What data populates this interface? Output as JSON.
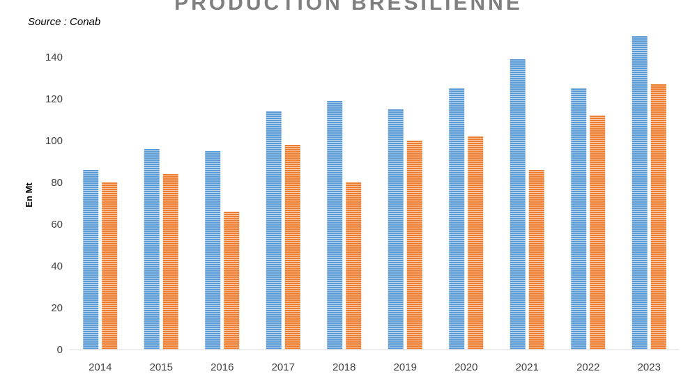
{
  "chart_data": {
    "type": "bar",
    "title": "PRODUCTION BRESILIENNE",
    "subtitle": "Source : Conab",
    "xlabel": "",
    "ylabel": "En Mt",
    "categories": [
      "2014",
      "2015",
      "2016",
      "2017",
      "2018",
      "2019",
      "2020",
      "2021",
      "2022",
      "2023"
    ],
    "series": [
      {
        "color": "#5b9bd5",
        "values": [
          86,
          96,
          95,
          114,
          119,
          115,
          125,
          139,
          125,
          150
        ]
      },
      {
        "color": "#ed7d31",
        "values": [
          80,
          84,
          66,
          98,
          80,
          100,
          102,
          86,
          112,
          127
        ]
      }
    ],
    "ylim": [
      0,
      150
    ],
    "yticks": [
      0,
      20,
      40,
      60,
      80,
      100,
      120,
      140
    ],
    "grid": false,
    "legend": "none"
  }
}
